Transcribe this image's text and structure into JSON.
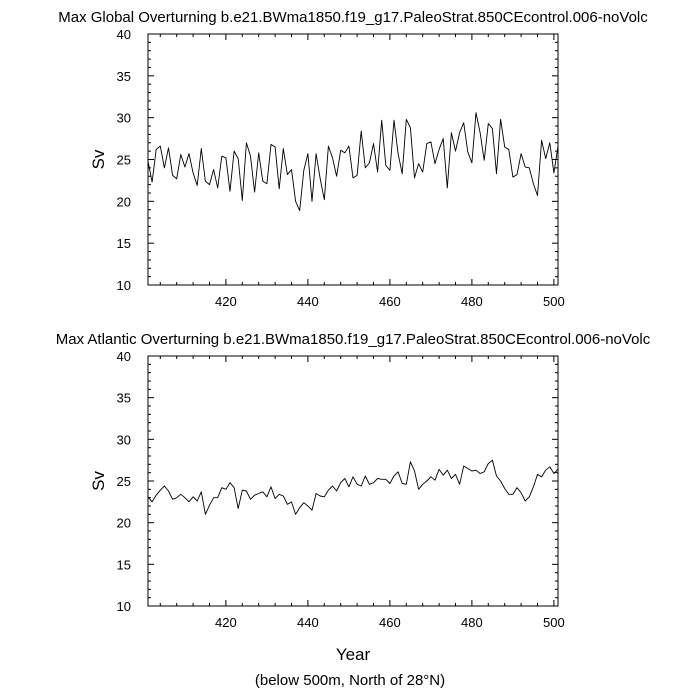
{
  "footnote": "(below 500m, North of 28°N)",
  "chart_data": [
    {
      "type": "line",
      "title": "Max Global Overturning b.e21.BWma1850.f19_g17.PaleoStrat.850CEcontrol.006-noVolc",
      "xlabel": "",
      "ylabel": "Sv",
      "xlim": [
        401,
        501
      ],
      "ylim": [
        10,
        40
      ],
      "xticks": [
        420,
        440,
        460,
        480,
        500
      ],
      "yticks": [
        10,
        15,
        20,
        25,
        30,
        35,
        40
      ],
      "grid": false,
      "series": [
        {
          "x_start": 401,
          "x_step": 1,
          "values": [
            24.8,
            22.3,
            26.2,
            26.6,
            24.0,
            26.4,
            23.1,
            22.7,
            25.6,
            24.1,
            25.7,
            23.4,
            21.9,
            26.3,
            22.4,
            22.0,
            23.8,
            21.6,
            25.4,
            25.2,
            21.2,
            26.0,
            25.1,
            20.1,
            27.0,
            25.4,
            21.1,
            25.8,
            22.4,
            22.1,
            26.8,
            26.5,
            21.5,
            26.3,
            23.2,
            23.8,
            20.0,
            18.9,
            23.7,
            25.7,
            20.0,
            25.7,
            22.7,
            20.2,
            26.6,
            25.2,
            23.0,
            26.1,
            25.8,
            26.6,
            22.8,
            23.1,
            28.4,
            24.0,
            24.6,
            26.9,
            23.5,
            29.7,
            24.3,
            23.7,
            29.7,
            25.7,
            23.3,
            29.8,
            28.8,
            22.8,
            24.5,
            23.5,
            26.9,
            27.1,
            24.5,
            26.2,
            27.5,
            21.6,
            28.2,
            26.0,
            28.2,
            29.4,
            25.9,
            24.6,
            30.6,
            28.2,
            24.9,
            29.3,
            28.7,
            23.3,
            29.8,
            26.5,
            26.2,
            22.9,
            23.2,
            25.7,
            24.1,
            24.0,
            22.1,
            20.7,
            27.3,
            25.1,
            27.0,
            23.4,
            26.6
          ]
        }
      ]
    },
    {
      "type": "line",
      "title": "Max Atlantic Overturning b.e21.BWma1850.f19_g17.PaleoStrat.850CEcontrol.006-noVolc",
      "xlabel": "Year",
      "ylabel": "Sv",
      "xlim": [
        401,
        501
      ],
      "ylim": [
        10,
        40
      ],
      "xticks": [
        420,
        440,
        460,
        480,
        500
      ],
      "yticks": [
        10,
        15,
        20,
        25,
        30,
        35,
        40
      ],
      "grid": false,
      "series": [
        {
          "x_start": 401,
          "x_step": 1,
          "values": [
            23.1,
            22.5,
            23.3,
            23.9,
            24.4,
            23.8,
            22.8,
            23.0,
            23.4,
            23.0,
            22.5,
            23.1,
            22.6,
            23.7,
            21.0,
            22.1,
            23.0,
            23.0,
            24.2,
            24.0,
            24.8,
            24.2,
            21.7,
            23.9,
            23.8,
            22.8,
            23.3,
            23.5,
            23.7,
            23.1,
            24.3,
            22.9,
            23.4,
            23.2,
            22.2,
            22.5,
            21.0,
            21.8,
            22.4,
            22.0,
            21.5,
            23.5,
            23.2,
            23.1,
            23.9,
            24.4,
            23.8,
            24.8,
            25.3,
            24.3,
            25.5,
            24.6,
            24.4,
            25.6,
            24.6,
            24.8,
            25.3,
            25.2,
            25.2,
            24.7,
            25.6,
            26.1,
            24.7,
            24.6,
            27.3,
            26.2,
            24.0,
            24.6,
            25.0,
            25.5,
            25.1,
            26.4,
            25.7,
            26.3,
            25.3,
            25.8,
            24.6,
            26.8,
            26.5,
            26.2,
            26.3,
            25.9,
            26.1,
            27.1,
            27.5,
            25.6,
            25.0,
            24.1,
            23.4,
            23.4,
            24.2,
            23.6,
            22.6,
            23.1,
            24.3,
            25.8,
            25.5,
            26.3,
            26.7,
            25.9,
            26.4
          ]
        }
      ]
    }
  ]
}
